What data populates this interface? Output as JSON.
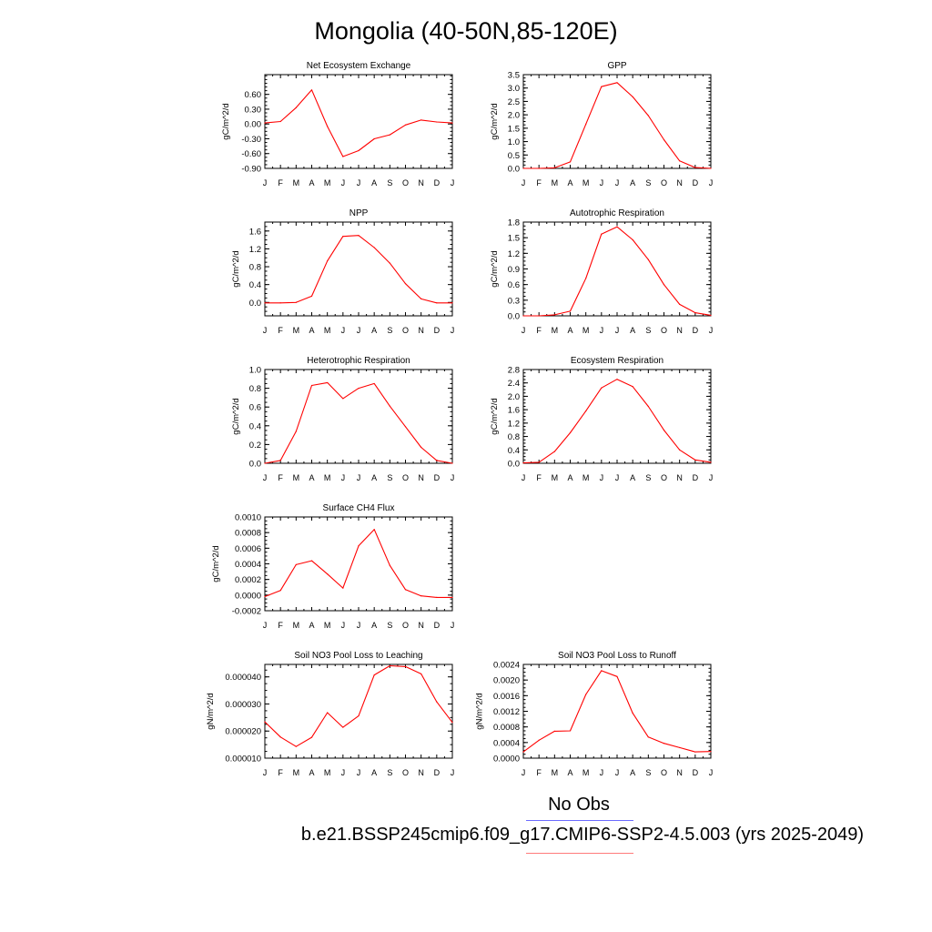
{
  "figure": {
    "title": "Mongolia (40-50N,85-120E)",
    "obs_label": "No Obs",
    "case_label": "b.e21.BSSP245cmip6.f09_g17.CMIP6-SSP2-4.5.003 (yrs 2025-2049)",
    "colors": {
      "model_line": "#ff0000",
      "obs_line": "#6b6bff",
      "axis": "#000000"
    }
  },
  "chart_data": [
    {
      "type": "line",
      "title": "Net Ecosystem Exchange",
      "ylabel": "gC/m^2/d",
      "x": [
        "J",
        "F",
        "M",
        "A",
        "M",
        "J",
        "J",
        "A",
        "S",
        "O",
        "N",
        "D",
        "J"
      ],
      "ylim": [
        -0.9,
        1.0
      ],
      "yticks": [
        -0.9,
        -0.6,
        -0.3,
        0.0,
        0.3,
        0.6
      ],
      "ytick_labels": [
        "-0.90",
        "-0.60",
        "-0.30",
        "0.00",
        "0.30",
        "0.60"
      ],
      "series": [
        {
          "values": [
            0.02,
            0.05,
            0.33,
            0.69,
            -0.05,
            -0.66,
            -0.54,
            -0.3,
            -0.22,
            -0.02,
            0.08,
            0.04,
            0.02
          ]
        }
      ]
    },
    {
      "type": "line",
      "title": "GPP",
      "ylabel": "gC/m^2/d",
      "x": [
        "J",
        "F",
        "M",
        "A",
        "M",
        "J",
        "J",
        "A",
        "S",
        "O",
        "N",
        "D",
        "J"
      ],
      "ylim": [
        0.0,
        3.5
      ],
      "yticks": [
        0.0,
        0.5,
        1.0,
        1.5,
        2.0,
        2.5,
        3.0,
        3.5
      ],
      "ytick_labels": [
        "0.0",
        "0.5",
        "1.0",
        "1.5",
        "2.0",
        "2.5",
        "3.0",
        "3.5"
      ],
      "series": [
        {
          "values": [
            0.0,
            0.0,
            0.02,
            0.24,
            1.65,
            3.05,
            3.2,
            2.67,
            1.97,
            1.07,
            0.28,
            0.03,
            0.0
          ]
        }
      ]
    },
    {
      "type": "line",
      "title": "NPP",
      "ylabel": "gC/m^2/d",
      "x": [
        "J",
        "F",
        "M",
        "A",
        "M",
        "J",
        "J",
        "A",
        "S",
        "O",
        "N",
        "D",
        "J"
      ],
      "ylim": [
        -0.3,
        1.8
      ],
      "yticks": [
        0.0,
        0.4,
        0.8,
        1.2,
        1.6
      ],
      "ytick_labels": [
        "0.0",
        "0.4",
        "0.8",
        "1.2",
        "1.6"
      ],
      "series": [
        {
          "values": [
            -0.01,
            -0.01,
            0.0,
            0.14,
            0.93,
            1.48,
            1.5,
            1.23,
            0.88,
            0.42,
            0.08,
            -0.01,
            -0.01
          ]
        }
      ]
    },
    {
      "type": "line",
      "title": "Autotrophic Respiration",
      "ylabel": "gC/m^2/d",
      "x": [
        "J",
        "F",
        "M",
        "A",
        "M",
        "J",
        "J",
        "A",
        "S",
        "O",
        "N",
        "D",
        "J"
      ],
      "ylim": [
        0.0,
        1.8
      ],
      "yticks": [
        0.0,
        0.3,
        0.6,
        0.9,
        1.2,
        1.5,
        1.8
      ],
      "ytick_labels": [
        "0.0",
        "0.3",
        "0.6",
        "0.9",
        "1.2",
        "1.5",
        "1.8"
      ],
      "series": [
        {
          "values": [
            0.0,
            0.0,
            0.02,
            0.09,
            0.72,
            1.57,
            1.71,
            1.46,
            1.08,
            0.6,
            0.22,
            0.06,
            0.01
          ]
        }
      ]
    },
    {
      "type": "line",
      "title": "Heterotrophic Respiration",
      "ylabel": "gC/m^2/d",
      "x": [
        "J",
        "F",
        "M",
        "A",
        "M",
        "J",
        "J",
        "A",
        "S",
        "O",
        "N",
        "D",
        "J"
      ],
      "ylim": [
        0.0,
        1.0
      ],
      "yticks": [
        0.0,
        0.2,
        0.4,
        0.6,
        0.8,
        1.0
      ],
      "ytick_labels": [
        "0.0",
        "0.2",
        "0.4",
        "0.6",
        "0.8",
        "1.0"
      ],
      "series": [
        {
          "values": [
            0.0,
            0.03,
            0.34,
            0.83,
            0.86,
            0.69,
            0.8,
            0.85,
            0.61,
            0.39,
            0.17,
            0.03,
            0.0
          ]
        }
      ]
    },
    {
      "type": "line",
      "title": "Ecosystem Respiration",
      "ylabel": "gC/m^2/d",
      "x": [
        "J",
        "F",
        "M",
        "A",
        "M",
        "J",
        "J",
        "A",
        "S",
        "O",
        "N",
        "D",
        "J"
      ],
      "ylim": [
        0.0,
        2.8
      ],
      "yticks": [
        0.0,
        0.4,
        0.8,
        1.2,
        1.6,
        2.0,
        2.4,
        2.8
      ],
      "ytick_labels": [
        "0.0",
        "0.4",
        "0.8",
        "1.2",
        "1.6",
        "2.0",
        "2.4",
        "2.8"
      ],
      "series": [
        {
          "values": [
            0.01,
            0.03,
            0.35,
            0.91,
            1.56,
            2.25,
            2.51,
            2.29,
            1.7,
            0.99,
            0.4,
            0.1,
            0.03
          ]
        }
      ]
    },
    {
      "type": "line",
      "title": "Surface CH4 Flux",
      "ylabel": "gC/m^2/d",
      "x": [
        "J",
        "F",
        "M",
        "A",
        "M",
        "J",
        "J",
        "A",
        "S",
        "O",
        "N",
        "D",
        "J"
      ],
      "ylim": [
        -0.0002,
        0.001
      ],
      "yticks": [
        -0.0002,
        0.0,
        0.0002,
        0.0004,
        0.0006,
        0.0008,
        0.001
      ],
      "ytick_labels": [
        "-0.0002",
        "0.0000",
        "0.0002",
        "0.0004",
        "0.0006",
        "0.0008",
        "0.0010"
      ],
      "series": [
        {
          "values": [
            -2e-05,
            6e-05,
            0.00039,
            0.00044,
            0.00027,
            9e-05,
            0.00063,
            0.00084,
            0.00038,
            7e-05,
            -1e-05,
            -3e-05,
            -3e-05
          ]
        }
      ]
    },
    {
      "type": "line",
      "title": "Soil NO3 Pool Loss to Leaching",
      "ylabel": "gN/m^2/d",
      "x": [
        "J",
        "F",
        "M",
        "A",
        "M",
        "J",
        "J",
        "A",
        "S",
        "O",
        "N",
        "D",
        "J"
      ],
      "ylim": [
        1e-05,
        4.46e-05
      ],
      "yticks": [
        1e-05,
        2e-05,
        3e-05,
        4e-05
      ],
      "ytick_labels": [
        "0.000010",
        "0.000020",
        "0.000030",
        "0.000040"
      ],
      "series": [
        {
          "values": [
            2.34e-05,
            1.78e-05,
            1.43e-05,
            1.77e-05,
            2.68e-05,
            2.14e-05,
            2.56e-05,
            4.07e-05,
            4.41e-05,
            4.38e-05,
            4.11e-05,
            3.08e-05,
            2.32e-05
          ]
        }
      ]
    },
    {
      "type": "line",
      "title": "Soil NO3 Pool Loss to Runoff",
      "ylabel": "gN/m^2/d",
      "x": [
        "J",
        "F",
        "M",
        "A",
        "M",
        "J",
        "J",
        "A",
        "S",
        "O",
        "N",
        "D",
        "J"
      ],
      "ylim": [
        0.0,
        0.0024
      ],
      "yticks": [
        0.0,
        0.0004,
        0.0008,
        0.0012,
        0.0016,
        0.002,
        0.0024
      ],
      "ytick_labels": [
        "0.0000",
        "0.0004",
        "0.0008",
        "0.0012",
        "0.0016",
        "0.0020",
        "0.0024"
      ],
      "series": [
        {
          "values": [
            0.00016,
            0.00046,
            0.00069,
            0.0007,
            0.00163,
            0.00224,
            0.00209,
            0.00115,
            0.00054,
            0.00038,
            0.00027,
            0.00016,
            0.00017
          ]
        }
      ]
    }
  ]
}
